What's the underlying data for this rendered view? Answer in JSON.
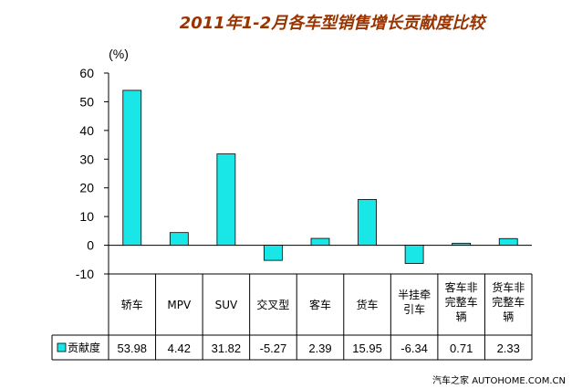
{
  "chart_data": {
    "type": "bar",
    "title": "2011年1-2月各车型销售增长贡献度比较",
    "ylabel": "(%)",
    "xlabel": "",
    "ylim": [
      -10,
      60
    ],
    "yticks": [
      60,
      50,
      40,
      30,
      20,
      10,
      0,
      -10
    ],
    "categories": [
      "轿车",
      "MPV",
      "SUV",
      "交叉型",
      "客车",
      "货车",
      "半挂牵引车",
      "客车非完整车辆",
      "货车非完整车辆"
    ],
    "category_lines": [
      [
        "轿车"
      ],
      [
        "MPV"
      ],
      [
        "SUV"
      ],
      [
        "交叉型"
      ],
      [
        "客车"
      ],
      [
        "货车"
      ],
      [
        "半挂牵",
        "引车"
      ],
      [
        "客车非",
        "完整车",
        "辆"
      ],
      [
        "货车非",
        "完整车",
        "辆"
      ]
    ],
    "series": [
      {
        "name": "贡献度",
        "values": [
          53.98,
          4.42,
          31.82,
          -5.27,
          2.39,
          15.95,
          -6.34,
          0.71,
          2.33
        ],
        "labels": [
          "53.98",
          "4.42",
          "31.82",
          "-5.27",
          "2.39",
          "15.95",
          "-6.34",
          "0.71",
          "2.33"
        ]
      }
    ],
    "legend": "table-left",
    "bar_color": "#19E6E6",
    "title_color": "#993300"
  },
  "watermark": "汽车之家 AUTOHOME.COM.CN"
}
